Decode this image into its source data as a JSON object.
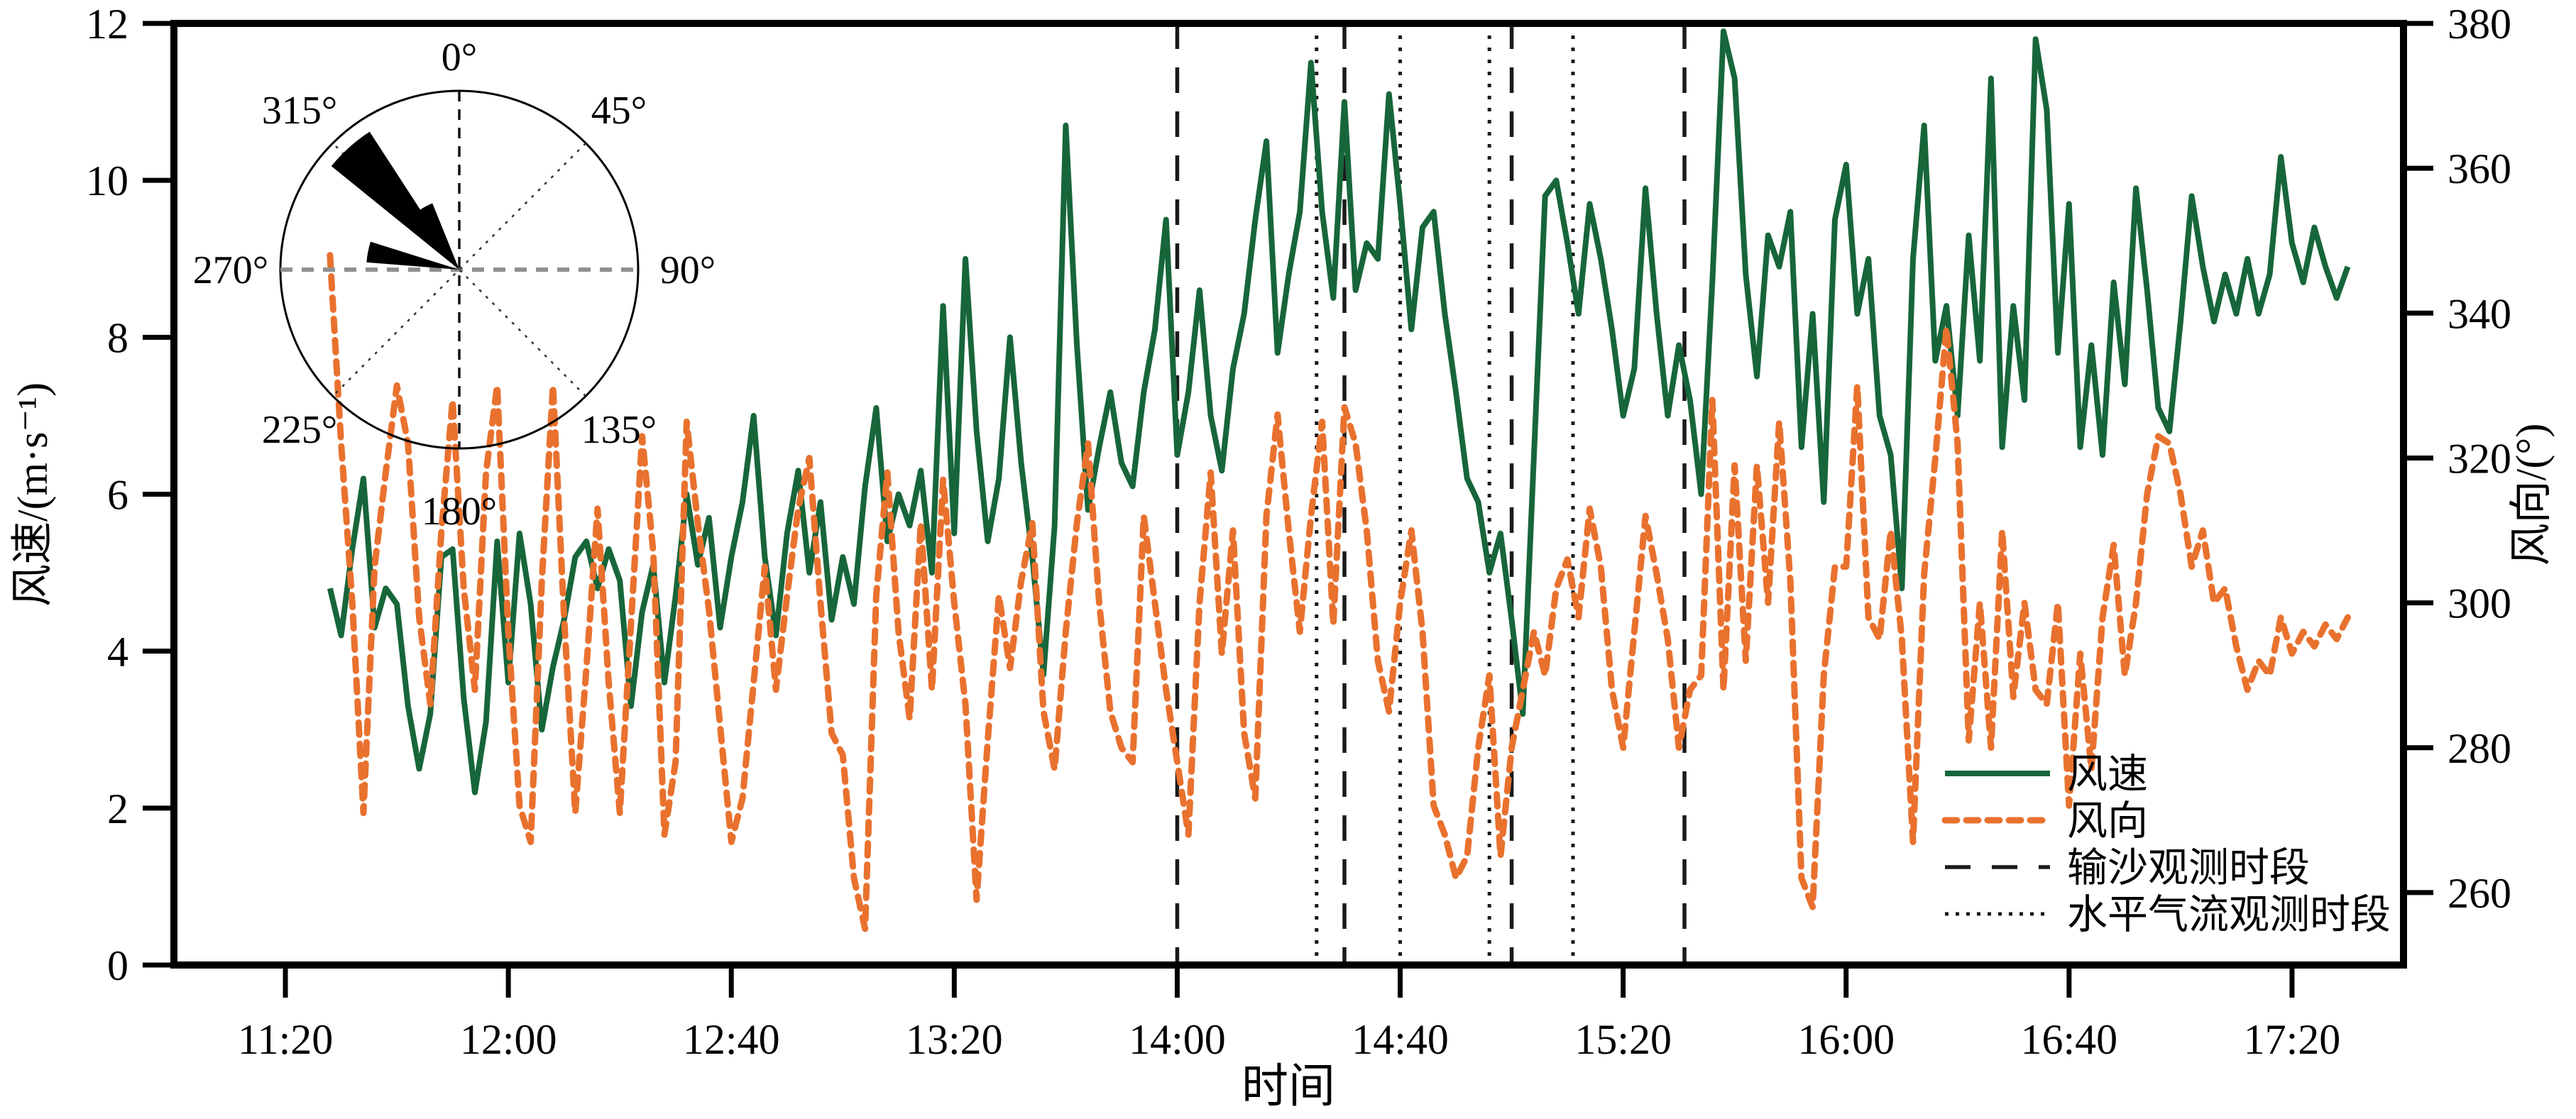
{
  "colors": {
    "wind_speed_line": "#17663a",
    "wind_direction_line": "#e9712e",
    "marker_dashed": "#1a1a1a",
    "marker_dotted": "#1a1a1a",
    "rose_horizontal_axis": "#8f8f8f",
    "axis": "#000000",
    "background": "#ffffff"
  },
  "axes": {
    "x": {
      "label": "时间",
      "ticks": [
        "11:20",
        "12:00",
        "12:40",
        "13:20",
        "14:00",
        "14:40",
        "15:20",
        "16:00",
        "16:40",
        "17:20"
      ],
      "domain": [
        "11:00",
        "17:40"
      ]
    },
    "y_left": {
      "label": "风速/(m·s⁻¹)",
      "ticks": [
        0,
        2,
        4,
        6,
        8,
        10,
        12
      ],
      "min": 0,
      "max": 12
    },
    "y_right": {
      "label": "风向/(°)",
      "ticks": [
        260,
        280,
        300,
        320,
        340,
        360,
        380
      ],
      "min": 250,
      "max": 380
    }
  },
  "legend": {
    "position": "inside-bottom-right",
    "items": [
      {
        "label": "风速",
        "swatch": "solid",
        "color": "#17663a",
        "width": 8,
        "dash": ""
      },
      {
        "label": "风向",
        "swatch": "dashed",
        "color": "#e9712e",
        "width": 9,
        "dash": "17 13"
      },
      {
        "label": "输沙观测时段",
        "swatch": "long-dash",
        "color": "#1a1a1a",
        "width": 5.5,
        "dash": "36 30"
      },
      {
        "label": "水平气流观测时段",
        "swatch": "dotted",
        "color": "#1a1a1a",
        "width": 5,
        "dash": "5 10"
      }
    ]
  },
  "chart_data": {
    "type": "line",
    "grid": "off",
    "title": "",
    "xlabel": "时间",
    "x_domain_time": [
      "11:00",
      "17:40"
    ],
    "sampling": {
      "t0_minutes_after_11_00": 28,
      "dt_minutes": 2
    },
    "series": [
      {
        "name": "风速",
        "axis": "left",
        "unit": "m·s⁻¹",
        "style": "solid",
        "color": "#17663a",
        "ylim": [
          0,
          12
        ],
        "values": [
          4.8,
          4.2,
          5.3,
          6.2,
          4.3,
          4.8,
          4.6,
          3.3,
          2.5,
          3.2,
          5.2,
          5.3,
          3.4,
          2.2,
          3.1,
          5.4,
          3.6,
          5.5,
          4.6,
          3.0,
          3.8,
          4.4,
          5.2,
          5.4,
          4.8,
          5.3,
          4.9,
          3.3,
          4.5,
          5.1,
          3.6,
          4.7,
          6.0,
          5.1,
          5.7,
          4.3,
          5.2,
          5.9,
          7.0,
          5.2,
          4.2,
          5.5,
          6.3,
          5.0,
          5.9,
          4.4,
          5.2,
          4.6,
          6.1,
          7.1,
          5.4,
          6.0,
          5.6,
          6.3,
          5.0,
          8.4,
          5.5,
          9.0,
          6.8,
          5.4,
          6.2,
          8.0,
          6.4,
          5.2,
          3.7,
          5.6,
          10.7,
          7.9,
          5.8,
          6.6,
          7.3,
          6.4,
          6.1,
          7.3,
          8.1,
          9.5,
          6.5,
          7.3,
          8.6,
          7.0,
          6.3,
          7.6,
          8.3,
          9.5,
          10.5,
          7.8,
          8.8,
          9.6,
          11.5,
          9.6,
          8.5,
          11.0,
          8.6,
          9.2,
          9.0,
          11.1,
          9.7,
          8.1,
          9.4,
          9.6,
          8.3,
          7.3,
          6.2,
          5.9,
          5.0,
          5.5,
          4.4,
          3.2,
          6.5,
          9.8,
          10.0,
          9.2,
          8.3,
          9.7,
          9.0,
          8.1,
          7.0,
          7.6,
          9.9,
          8.3,
          7.0,
          7.9,
          7.2,
          6.0,
          8.7,
          11.9,
          11.3,
          8.8,
          7.5,
          9.3,
          8.9,
          9.6,
          6.6,
          8.3,
          5.9,
          9.5,
          10.2,
          8.3,
          9.0,
          7.0,
          6.5,
          4.8,
          9.0,
          10.7,
          7.7,
          8.4,
          7.0,
          9.3,
          7.7,
          11.3,
          6.6,
          8.4,
          7.2,
          11.8,
          10.9,
          7.8,
          9.7,
          6.6,
          7.9,
          6.5,
          8.7,
          7.4,
          9.9,
          8.6,
          7.1,
          6.8,
          8.2,
          9.8,
          8.9,
          8.2,
          8.8,
          8.3,
          9.0,
          8.3,
          8.8,
          10.3,
          9.2,
          8.7,
          9.4,
          8.9,
          8.5,
          8.9
        ]
      },
      {
        "name": "风向",
        "axis": "right",
        "unit": "°",
        "style": "dashed",
        "color": "#e9712e",
        "ylim": [
          250,
          380
        ],
        "values": [
          348,
          322,
          300,
          271,
          305,
          318,
          330,
          322,
          298,
          286,
          310,
          328,
          302,
          288,
          318,
          330,
          296,
          272,
          267,
          303,
          330,
          298,
          271,
          291,
          313,
          289,
          271,
          297,
          323,
          307,
          268,
          278,
          325,
          311,
          299,
          283,
          267,
          273,
          289,
          305,
          288,
          301,
          313,
          320,
          300,
          282,
          279,
          262,
          255,
          301,
          318,
          296,
          284,
          311,
          288,
          317,
          300,
          286,
          259,
          281,
          301,
          291,
          303,
          311,
          285,
          277,
          296,
          311,
          322,
          300,
          285,
          280,
          278,
          312,
          300,
          288,
          278,
          268,
          300,
          318,
          293,
          310,
          282,
          273,
          312,
          326,
          310,
          296,
          312,
          325,
          297,
          327,
          322,
          310,
          292,
          285,
          300,
          310,
          296,
          272,
          268,
          262,
          265,
          280,
          290,
          265,
          280,
          288,
          296,
          290,
          302,
          306,
          298,
          313,
          305,
          288,
          280,
          296,
          312,
          304,
          295,
          280,
          288,
          290,
          328,
          288,
          319,
          292,
          319,
          300,
          325,
          303,
          262,
          258,
          290,
          305,
          305,
          330,
          298,
          295,
          310,
          295,
          267,
          304,
          320,
          338,
          322,
          281,
          300,
          280,
          310,
          287,
          300,
          288,
          286,
          300,
          272,
          293,
          277,
          298,
          308,
          290,
          300,
          315,
          323,
          322,
          315,
          305,
          310,
          300,
          302,
          294,
          288,
          292,
          290,
          298,
          293,
          296,
          294,
          297,
          295,
          298
        ]
      }
    ],
    "event_markers": {
      "dashed": {
        "label": "输沙观测时段",
        "times": [
          "14:00",
          "14:30",
          "15:00",
          "15:31"
        ]
      },
      "dotted": {
        "label": "水平气流观测时段",
        "times": [
          "14:25",
          "14:40",
          "14:56",
          "15:11"
        ]
      }
    },
    "wind_rose_inset": {
      "ring_labels": [
        {
          "angle_deg": 0,
          "text": "0°"
        },
        {
          "angle_deg": 45,
          "text": "45°"
        },
        {
          "angle_deg": 90,
          "text": "90°"
        },
        {
          "angle_deg": 135,
          "text": "135°"
        },
        {
          "angle_deg": 180,
          "text": "180°"
        },
        {
          "angle_deg": 225,
          "text": "225°"
        },
        {
          "angle_deg": 270,
          "text": "270°"
        },
        {
          "angle_deg": 315,
          "text": "315°"
        }
      ],
      "petals": [
        {
          "direction_deg": 318,
          "length_frac": 0.92,
          "half_width_deg": 9
        },
        {
          "direction_deg": 332,
          "length_frac": 0.4,
          "half_width_deg": 6
        },
        {
          "direction_deg": 281,
          "length_frac": 0.52,
          "half_width_deg": 6.5
        }
      ]
    }
  }
}
